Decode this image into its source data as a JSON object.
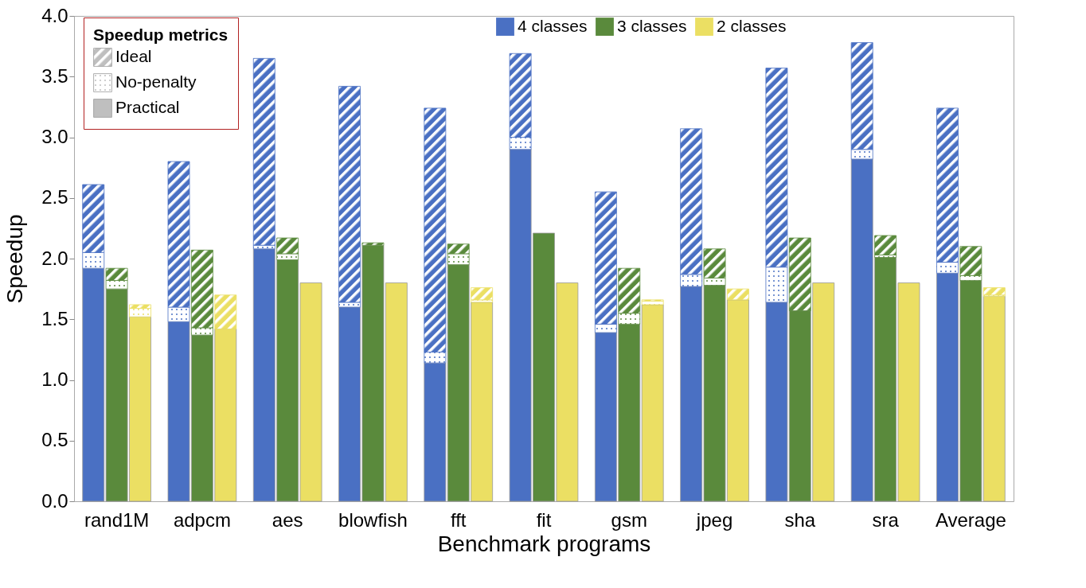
{
  "chart_data": {
    "type": "bar",
    "xlabel": "Benchmark programs",
    "ylabel": "Speedup",
    "categories": [
      "rand1M",
      "adpcm",
      "aes",
      "blowfish",
      "fft",
      "fit",
      "gsm",
      "jpeg",
      "sha",
      "sra",
      "Average"
    ],
    "ylim": [
      0,
      4
    ],
    "yticks": [
      {
        "value": 0,
        "label": "0.0"
      },
      {
        "value": 0.5,
        "label": "0.5"
      },
      {
        "value": 1,
        "label": "1.0"
      },
      {
        "value": 1.5,
        "label": "1.5"
      },
      {
        "value": 2,
        "label": "2.0"
      },
      {
        "value": 2.5,
        "label": "2.5"
      },
      {
        "value": 3,
        "label": "3.0"
      },
      {
        "value": 3.5,
        "label": "3.5"
      },
      {
        "value": 4,
        "label": "4.0"
      }
    ],
    "grid": false,
    "legend": "top",
    "legend_title": "Speedup metrics",
    "annotations": [
      "Ideal",
      "No-penalty",
      "Practical"
    ],
    "series": [
      {
        "name": "4 classes",
        "color": "#4a70c3",
        "values": [
          1.92,
          1.48,
          2.08,
          1.6,
          1.14,
          2.9,
          1.39,
          1.77,
          1.64,
          2.82,
          1.88
        ],
        "base": [
          0,
          0,
          0,
          0,
          0,
          0,
          0,
          0,
          0,
          0,
          0
        ]
      },
      {
        "color": "#4a70c3",
        "values": [
          0.13,
          0.12,
          0.03,
          0.04,
          0.09,
          0.1,
          0.07,
          0.1,
          0.29,
          0.08,
          0.09
        ],
        "base": [
          1.92,
          1.48,
          2.08,
          1.6,
          1.14,
          2.9,
          1.39,
          1.77,
          1.64,
          2.82,
          1.88
        ]
      },
      {
        "color": "#4a70c3",
        "values": [
          0.56,
          1.2,
          1.54,
          1.78,
          2.01,
          0.69,
          1.09,
          1.2,
          1.64,
          0.88,
          1.27
        ],
        "base": [
          2.05,
          1.6,
          2.11,
          1.64,
          1.23,
          3.0,
          1.46,
          1.87,
          1.93,
          2.9,
          1.97
        ]
      },
      {
        "name": "3 classes",
        "color": "#5a8a3c",
        "values": [
          1.75,
          1.37,
          1.99,
          2.11,
          1.95,
          2.21,
          1.46,
          1.78,
          1.57,
          2.01,
          1.82
        ],
        "base": [
          0,
          0,
          0,
          0,
          0,
          0,
          0,
          0,
          0,
          0,
          0
        ]
      },
      {
        "color": "#5a8a3c",
        "values": [
          0.07,
          0.06,
          0.05,
          null,
          0.09,
          null,
          0.09,
          0.06,
          null,
          0.02,
          0.04
        ],
        "base": [
          1.75,
          1.37,
          1.99,
          null,
          1.95,
          null,
          1.46,
          1.78,
          null,
          2.01,
          1.82
        ]
      },
      {
        "color": "#5a8a3c",
        "values": [
          0.1,
          0.64,
          0.13,
          0.02,
          0.08,
          null,
          0.37,
          0.24,
          0.6,
          0.16,
          0.24
        ],
        "base": [
          1.82,
          1.43,
          2.04,
          2.11,
          2.04,
          null,
          1.55,
          1.84,
          1.57,
          2.03,
          1.86
        ]
      },
      {
        "name": "2 classes",
        "color": "#ebdf63",
        "values": [
          1.52,
          1.42,
          1.8,
          1.8,
          1.64,
          1.8,
          1.62,
          1.66,
          1.8,
          1.8,
          1.69
        ],
        "base": [
          0,
          0,
          0,
          0,
          0,
          0,
          0,
          0,
          0,
          0,
          0
        ]
      },
      {
        "color": "#ebdf63",
        "values": [
          0.07,
          null,
          null,
          null,
          0.02,
          null,
          0.03,
          null,
          null,
          null,
          0.01
        ],
        "base": [
          1.52,
          null,
          null,
          null,
          1.64,
          null,
          1.62,
          null,
          null,
          null,
          1.69
        ]
      },
      {
        "color": "#ebdf63",
        "values": [
          0.03,
          0.28,
          null,
          null,
          0.1,
          null,
          0.01,
          0.09,
          null,
          null,
          0.06
        ],
        "base": [
          1.59,
          1.42,
          null,
          null,
          1.66,
          null,
          1.65,
          1.66,
          null,
          null,
          1.7
        ]
      }
    ]
  }
}
